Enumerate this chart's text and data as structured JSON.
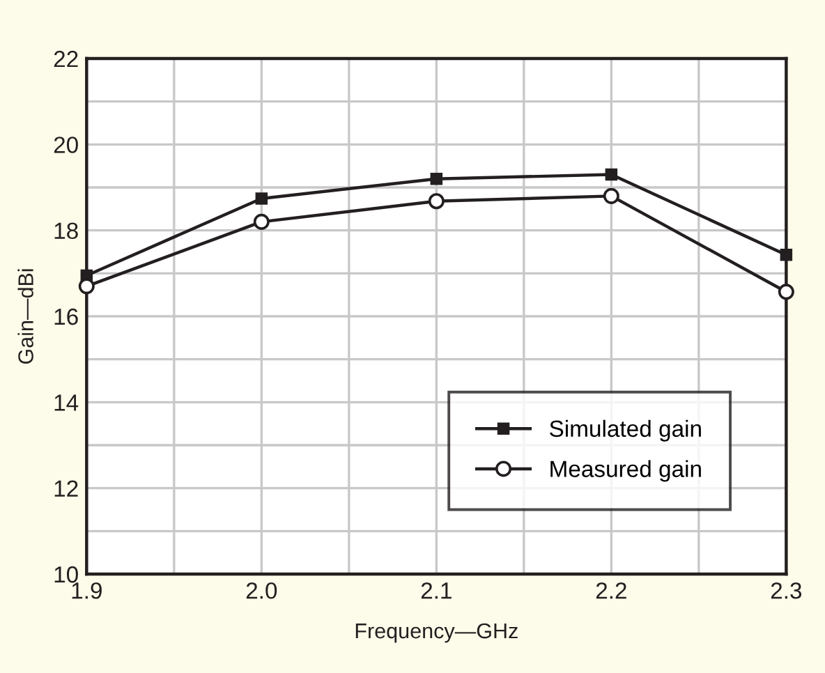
{
  "chart_data": {
    "type": "line",
    "xlabel": "Frequency—GHz",
    "ylabel": "Gain—dBi",
    "x": [
      1.9,
      2.0,
      2.1,
      2.2,
      2.3
    ],
    "series": [
      {
        "name": "Simulated gain",
        "color": "#231f20",
        "marker": "square",
        "values": [
          16.95,
          18.74,
          19.2,
          19.3,
          17.43
        ]
      },
      {
        "name": "Measured gain",
        "color": "#231f20",
        "marker": "circle",
        "values": [
          16.7,
          18.2,
          18.68,
          18.8,
          16.57
        ]
      }
    ],
    "xlim": [
      1.9,
      2.3
    ],
    "ylim": [
      10,
      22
    ],
    "xticks": [
      {
        "value": 1.9,
        "label": "1.9"
      },
      {
        "value": 1.95,
        "label": null
      },
      {
        "value": 2.0,
        "label": "2.0"
      },
      {
        "value": 2.05,
        "label": null
      },
      {
        "value": 2.1,
        "label": "2.1"
      },
      {
        "value": 2.15,
        "label": null
      },
      {
        "value": 2.2,
        "label": "2.2"
      },
      {
        "value": 2.25,
        "label": null
      },
      {
        "value": 2.3,
        "label": "2.3"
      }
    ],
    "yticks": [
      10,
      {
        "value": 11,
        "label": null
      },
      12,
      {
        "value": 13,
        "label": null
      },
      14,
      {
        "value": 15,
        "label": null
      },
      16,
      {
        "value": 17,
        "label": null
      },
      18,
      {
        "value": 19,
        "label": null
      },
      20,
      {
        "value": 21,
        "label": null
      },
      22
    ],
    "grid": true,
    "legend": "bottom right",
    "line_style": "solid"
  }
}
